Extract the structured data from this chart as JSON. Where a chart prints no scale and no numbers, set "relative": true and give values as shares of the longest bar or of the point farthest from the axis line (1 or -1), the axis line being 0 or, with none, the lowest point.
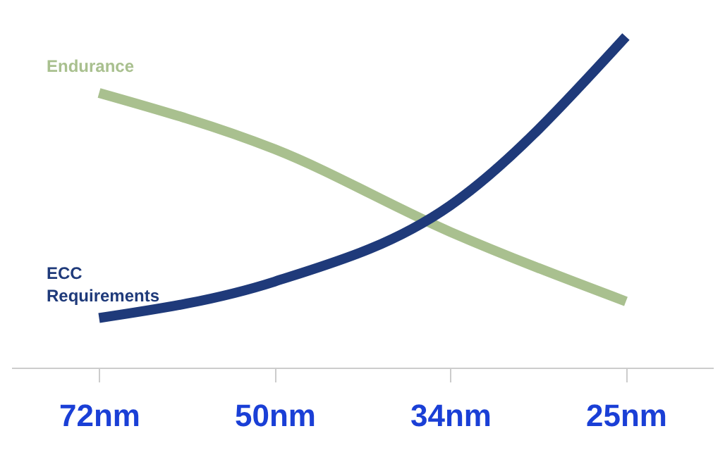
{
  "chart_data": {
    "type": "line",
    "relative": true,
    "categories": [
      "72nm",
      "50nm",
      "34nm",
      "25nm"
    ],
    "series": [
      {
        "name": "Endurance",
        "color": "#a9c08f",
        "values": [
          0.83,
          0.66,
          0.41,
          0.2
        ]
      },
      {
        "name": "ECC Requirements",
        "color": "#1f3a7a",
        "values": [
          0.15,
          0.26,
          0.49,
          1
        ]
      }
    ],
    "legend": false,
    "marker": "none",
    "line_style": "solid"
  }
}
